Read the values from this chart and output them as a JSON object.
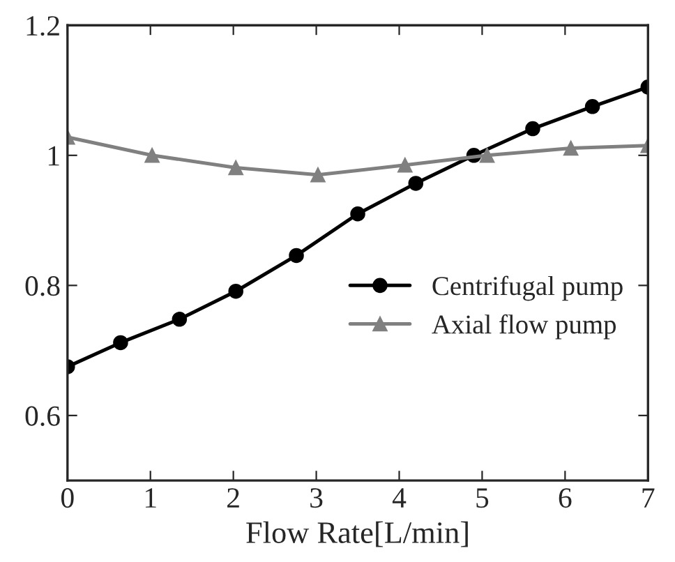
{
  "chart_data": {
    "type": "line",
    "xlabel": "Flow Rate[L/min]",
    "xlim": [
      0,
      7
    ],
    "xticks": [
      0,
      1,
      2,
      3,
      4,
      5,
      6,
      {
        "value": 7,
        "label": "7"
      }
    ],
    "ylim": [
      0.5,
      1.2
    ],
    "yticks": [
      0.6,
      0.8,
      1,
      1.2
    ],
    "grid": false,
    "legend": "right",
    "series": [
      {
        "name": "Centrifugal pump",
        "color": "#000000",
        "marker": "circle",
        "x": [
          0,
          0.64,
          1.35,
          2.03,
          2.76,
          3.5,
          4.2,
          4.9,
          5.61,
          6.33,
          7.0
        ],
        "values": [
          0.675,
          0.712,
          0.748,
          0.791,
          0.846,
          0.91,
          0.957,
          1.0,
          1.041,
          1.075,
          1.105
        ]
      },
      {
        "name": "Axial flow pump",
        "color": "#808080",
        "marker": "triangle",
        "x": [
          0,
          1.02,
          2.03,
          3.02,
          4.07,
          5.06,
          6.07,
          7.0
        ],
        "values": [
          1.028,
          1.0,
          0.981,
          0.97,
          0.985,
          1.0,
          1.011,
          1.015
        ]
      }
    ]
  }
}
